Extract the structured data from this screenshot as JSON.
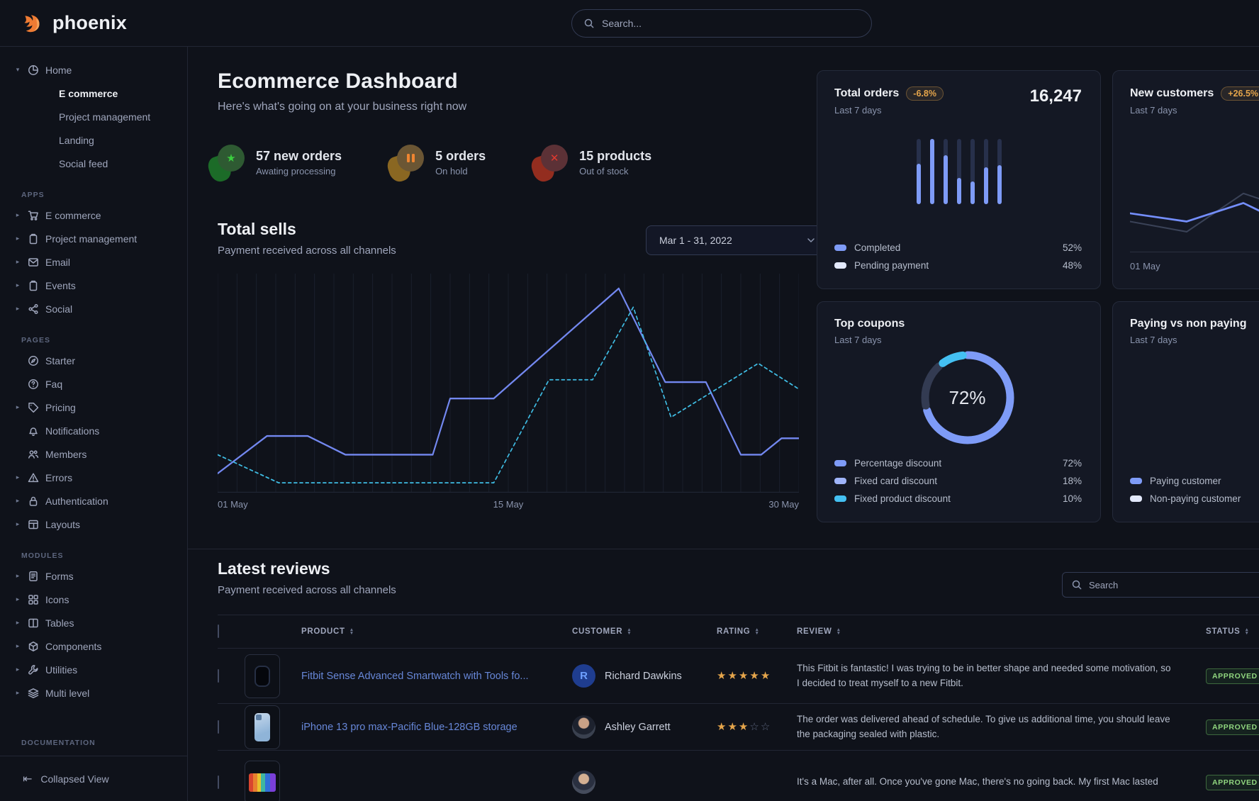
{
  "brand": {
    "name": "phoenix",
    "accent": "#ee7b33"
  },
  "topnav": {
    "search_placeholder": "Search..."
  },
  "sidebar": {
    "home": {
      "label": "Home",
      "icon": "pie-chart",
      "children": [
        {
          "label": "E commerce",
          "active": true
        },
        {
          "label": "Project management",
          "active": false
        },
        {
          "label": "Landing",
          "active": false
        },
        {
          "label": "Social feed",
          "active": false
        }
      ]
    },
    "sections": [
      {
        "label": "APPS",
        "items": [
          {
            "label": "E commerce",
            "icon": "cart",
            "caret": true
          },
          {
            "label": "Project management",
            "icon": "clipboard",
            "caret": true
          },
          {
            "label": "Email",
            "icon": "mail",
            "caret": true
          },
          {
            "label": "Events",
            "icon": "clipboard",
            "caret": true
          },
          {
            "label": "Social",
            "icon": "share",
            "caret": true
          }
        ]
      },
      {
        "label": "PAGES",
        "items": [
          {
            "label": "Starter",
            "icon": "compass",
            "caret": false
          },
          {
            "label": "Faq",
            "icon": "question-circle",
            "caret": false
          },
          {
            "label": "Pricing",
            "icon": "tag",
            "caret": true
          },
          {
            "label": "Notifications",
            "icon": "bell",
            "caret": false
          },
          {
            "label": "Members",
            "icon": "users",
            "caret": false
          },
          {
            "label": "Errors",
            "icon": "warning-triangle",
            "caret": true
          },
          {
            "label": "Authentication",
            "icon": "lock",
            "caret": true
          },
          {
            "label": "Layouts",
            "icon": "layout",
            "caret": true
          }
        ]
      },
      {
        "label": "MODULES",
        "items": [
          {
            "label": "Forms",
            "icon": "file-text",
            "caret": true
          },
          {
            "label": "Icons",
            "icon": "grid",
            "caret": true
          },
          {
            "label": "Tables",
            "icon": "columns",
            "caret": true
          },
          {
            "label": "Components",
            "icon": "package",
            "caret": true
          },
          {
            "label": "Utilities",
            "icon": "wrench",
            "caret": true
          },
          {
            "label": "Multi level",
            "icon": "layers",
            "caret": true
          }
        ]
      }
    ],
    "documentation_label": "DOCUMENTATION",
    "collapse": {
      "label": "Collapsed View",
      "icon": "collapse-left"
    }
  },
  "page": {
    "title": "Ecommerce Dashboard",
    "subtitle": "Here's what's going on at your business right now"
  },
  "stats": [
    {
      "title": "57 new orders",
      "subtitle": "Awating processing",
      "icon": "star",
      "glyph_color": "#3bcf3f",
      "circle_color": "#2e5a32",
      "blob_color": "#1c6b28"
    },
    {
      "title": "5 orders",
      "subtitle": "On hold",
      "icon": "pause",
      "glyph_color": "#ef8531",
      "circle_color": "#6b5634",
      "blob_color": "#8a6722"
    },
    {
      "title": "15 products",
      "subtitle": "Out of stock",
      "icon": "x-mark",
      "glyph_color": "#e03a2f",
      "circle_color": "#5c3136",
      "blob_color": "#932d1f"
    }
  ],
  "total_sells": {
    "title": "Total sells",
    "subtitle": "Payment received across all channels",
    "date_range": "Mar 1 - 31, 2022",
    "x_labels": [
      "01 May",
      "15 May",
      "30 May"
    ],
    "chart_data": {
      "type": "line",
      "x_range": [
        0,
        1000
      ],
      "ylim": [
        0,
        100
      ],
      "grid": "vertical-31",
      "series": [
        {
          "name": "solid-blue",
          "color": "#7388f0",
          "dash": false,
          "points": [
            [
              0,
              8
            ],
            [
              85,
              24
            ],
            [
              155,
              24
            ],
            [
              220,
              16
            ],
            [
              370,
              16
            ],
            [
              400,
              40
            ],
            [
              475,
              40
            ],
            [
              690,
              87
            ],
            [
              770,
              47
            ],
            [
              840,
              47
            ],
            [
              900,
              16
            ],
            [
              935,
              16
            ],
            [
              970,
              23
            ],
            [
              1000,
              23
            ]
          ]
        },
        {
          "name": "dashed-teal",
          "color": "#3fbde4",
          "dash": true,
          "points": [
            [
              0,
              16
            ],
            [
              105,
              4
            ],
            [
              475,
              4
            ],
            [
              570,
              48
            ],
            [
              645,
              48
            ],
            [
              715,
              79
            ],
            [
              780,
              32
            ],
            [
              930,
              55
            ],
            [
              1000,
              44
            ]
          ]
        }
      ]
    }
  },
  "cards": {
    "total_orders": {
      "title": "Total orders",
      "badge": "-6.8%",
      "value": "16,247",
      "period": "Last 7 days",
      "chart_data": {
        "type": "bar",
        "categories": [
          "d1",
          "d2",
          "d3",
          "d4",
          "d5",
          "d6",
          "d7"
        ],
        "series": [
          {
            "name": "Completed",
            "color": "#7e9bf7",
            "values": [
              62,
              100,
              75,
              40,
              35,
              56,
              60
            ]
          },
          {
            "name": "Pending payment",
            "color": "#27304b",
            "values": [
              38,
              0,
              25,
              60,
              65,
              44,
              40
            ]
          }
        ]
      },
      "legend": [
        {
          "label": "Completed",
          "value": "52%",
          "swatch": "#7e9bf7"
        },
        {
          "label": "Pending payment",
          "value": "48%",
          "swatch": "#e3e9fc"
        }
      ]
    },
    "new_customers": {
      "title": "New customers",
      "badge": "+26.5%",
      "period": "Last 7 days",
      "x_label": "01 May",
      "chart_data": {
        "type": "line",
        "x": [
          0,
          32,
          64,
          100
        ],
        "ylim": [
          0,
          100
        ],
        "series": [
          {
            "name": "previous",
            "color": "#3a4257",
            "values": [
              44,
              29,
              85,
              54
            ]
          },
          {
            "name": "current",
            "color": "#748efc",
            "values": [
              56,
              44,
              71,
              26
            ]
          }
        ]
      }
    },
    "top_coupons": {
      "title": "Top coupons",
      "period": "Last 7 days",
      "center_value": "72%",
      "chart_data": {
        "type": "pie",
        "labels": [
          "Percentage discount",
          "Fixed card discount",
          "Fixed product discount"
        ],
        "values": [
          72,
          18,
          10
        ],
        "arc_colors": [
          "#7e9bf7",
          "#333b52",
          "#44c0f2"
        ]
      },
      "legend": [
        {
          "label": "Percentage discount",
          "value": "72%",
          "swatch": "#7e9bf7"
        },
        {
          "label": "Fixed card discount",
          "value": "18%",
          "swatch": "#9fb4f9"
        },
        {
          "label": "Fixed product discount",
          "value": "10%",
          "swatch": "#44c0f2"
        }
      ]
    },
    "paying": {
      "title": "Paying vs non paying",
      "period": "Last 7 days",
      "chart_data": {
        "type": "pie",
        "labels": [
          "Paying customer",
          "Non-paying customer"
        ],
        "arc_colors": [
          "#7e9bf7",
          "#27304b"
        ]
      },
      "legend": [
        {
          "label": "Paying customer",
          "swatch": "#7e9bf7"
        },
        {
          "label": "Non-paying customer",
          "swatch": "#e3e9fc"
        }
      ]
    }
  },
  "reviews": {
    "title": "Latest reviews",
    "subtitle": "Payment received across all channels",
    "search_placeholder": "Search",
    "columns": [
      "PRODUCT",
      "CUSTOMER",
      "RATING",
      "REVIEW",
      "STATUS"
    ],
    "rows": [
      {
        "product": "Fitbit Sense Advanced Smartwatch with Tools fo...",
        "thumb": "watch",
        "customer": "Richard Dawkins",
        "avatar": {
          "type": "initial",
          "text": "R"
        },
        "rating": 5,
        "review": "This Fitbit is fantastic! I was trying to be in better shape and needed some motivation, so I decided to treat myself to a new Fitbit.",
        "status": "APPROVED"
      },
      {
        "product": "iPhone 13 pro max-Pacific Blue-128GB storage",
        "thumb": "iphone",
        "customer": "Ashley Garrett",
        "avatar": {
          "type": "photo-f",
          "text": ""
        },
        "rating": 3,
        "review": "The order was delivered ahead of schedule. To give us additional time, you should leave the packaging sealed with plastic.",
        "status": "APPROVED"
      },
      {
        "product": "",
        "thumb": "macbook",
        "customer": "",
        "avatar": {
          "type": "photo-m",
          "text": ""
        },
        "rating": null,
        "review": "It's a Mac, after all. Once you've gone Mac, there's no going back. My first Mac lasted",
        "status": "APPROVED"
      }
    ]
  }
}
